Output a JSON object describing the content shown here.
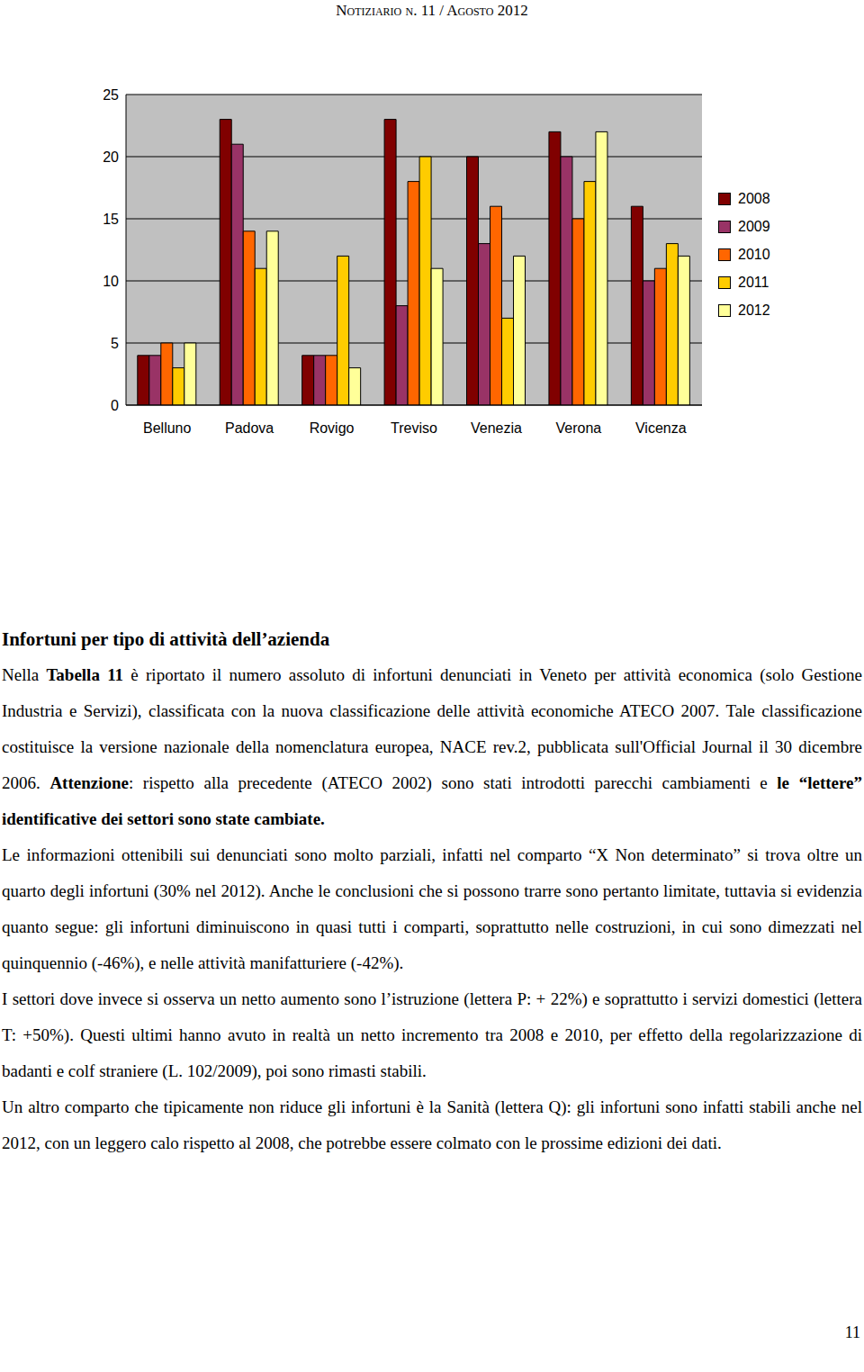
{
  "header": {
    "text": "Notiziario n. 11 / Agosto 2012"
  },
  "chart_data": {
    "type": "bar",
    "categories": [
      "Belluno",
      "Padova",
      "Rovigo",
      "Treviso",
      "Venezia",
      "Verona",
      "Vicenza"
    ],
    "series": [
      {
        "name": "2008",
        "color": "#800000",
        "values": [
          4,
          23,
          4,
          23,
          20,
          22,
          16
        ]
      },
      {
        "name": "2009",
        "color": "#993366",
        "values": [
          4,
          21,
          4,
          8,
          13,
          20,
          10
        ]
      },
      {
        "name": "2010",
        "color": "#ff6600",
        "values": [
          5,
          14,
          4,
          18,
          16,
          15,
          11
        ]
      },
      {
        "name": "2011",
        "color": "#ffcc00",
        "values": [
          3,
          11,
          12,
          20,
          7,
          18,
          13
        ]
      },
      {
        "name": "2012",
        "color": "#ffff99",
        "values": [
          5,
          14,
          3,
          11,
          12,
          22,
          12
        ]
      }
    ],
    "ylim": [
      0,
      25
    ],
    "yticks": [
      0,
      5,
      10,
      15,
      20,
      25
    ],
    "grid": true,
    "legend": "right"
  },
  "section": {
    "title": "Infortuni per tipo di attività dell’azienda",
    "paragraphs": [
      [
        {
          "text": "Nella ",
          "bold": false
        },
        {
          "text": "Tabella 11",
          "bold": true
        },
        {
          "text": " è riportato il numero assoluto di infortuni denunciati in Veneto per attività economica (solo Gestione Industria e Servizi), classificata con la nuova classificazione delle attività economiche ATECO 2007. Tale classificazione costituisce la versione nazionale della nomenclatura europea, NACE rev.2, pubblicata sull'Official Journal il 30 dicembre 2006. ",
          "bold": false
        },
        {
          "text": "Attenzione",
          "bold": true
        },
        {
          "text": ": rispetto alla precedente (ATECO 2002) sono stati introdotti parecchi cambiamenti e ",
          "bold": false
        },
        {
          "text": "le “lettere” identificative dei settori sono state cambiate.",
          "bold": true
        }
      ],
      [
        {
          "text": "Le informazioni ottenibili sui denunciati sono molto parziali, infatti nel comparto “X Non determinato” si trova oltre un quarto degli infortuni (30% nel 2012). Anche le conclusioni che si possono trarre sono pertanto limitate, tuttavia si evidenzia quanto segue: gli infortuni diminuiscono in quasi tutti i comparti, soprattutto nelle costruzioni, in cui sono dimezzati nel quinquennio (-46%), e nelle attività manifatturiere (-42%).",
          "bold": false
        }
      ],
      [
        {
          "text": "I settori dove invece si osserva un netto aumento sono l’istruzione (lettera P: + 22%) e soprattutto i servizi domestici (lettera T: +50%). Questi ultimi hanno avuto in realtà un netto incremento tra 2008 e 2010, per effetto della regolarizzazione di badanti e colf straniere (L. 102/2009), poi sono rimasti stabili.",
          "bold": false
        }
      ],
      [
        {
          "text": "Un altro comparto che tipicamente non riduce gli infortuni è la Sanità (lettera Q): gli infortuni sono infatti stabili anche nel 2012, con un leggero calo rispetto al 2008, che potrebbe essere colmato con le prossime edizioni dei dati.",
          "bold": false
        }
      ]
    ]
  },
  "page_number": "11"
}
